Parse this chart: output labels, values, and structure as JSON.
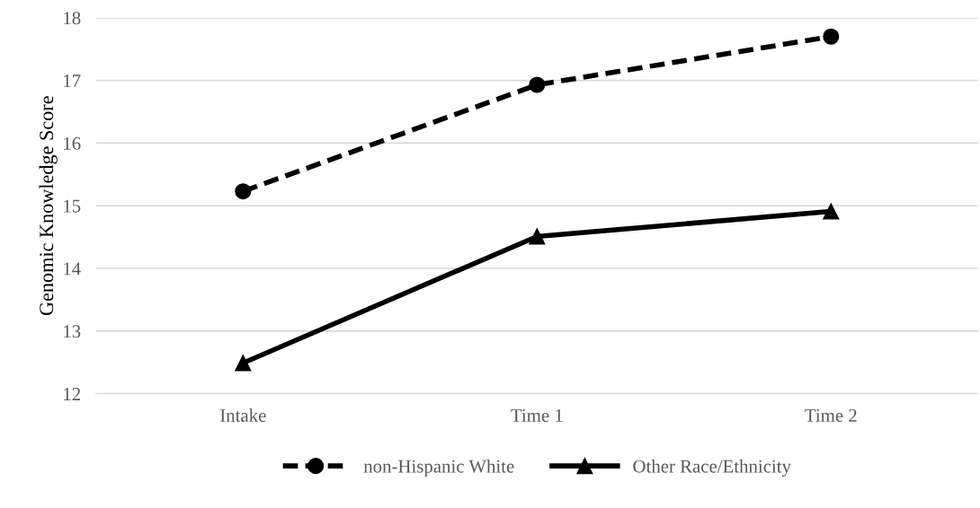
{
  "chart_data": {
    "type": "line",
    "ylabel": "Genomic Knowledge Score",
    "categories": [
      "Intake",
      "Time 1",
      "Time 2"
    ],
    "series": [
      {
        "name": "non-Hispanic White",
        "color": "#000000",
        "values": [
          15.23,
          16.93,
          17.7
        ],
        "marker": "circle",
        "line_style": "dashed"
      },
      {
        "name": "Other Race/Ethnicity",
        "color": "#000000",
        "values": [
          12.49,
          14.51,
          14.91
        ],
        "marker": "triangle",
        "line_style": "solid"
      }
    ],
    "ylim": [
      12,
      18
    ],
    "yticks": [
      12,
      13,
      14,
      15,
      16,
      17,
      18
    ],
    "grid": "y",
    "legend": "bottom"
  }
}
